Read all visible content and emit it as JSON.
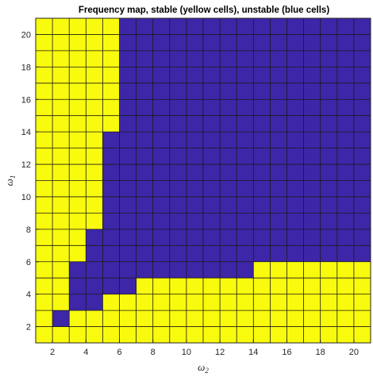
{
  "chart_data": {
    "type": "heatmap",
    "title": "Frequency map, stable (yellow cells), unstable (blue cells)",
    "xlabel": "ω2",
    "ylabel": "ω1",
    "x_symbol": "ω",
    "x_subscript": "2",
    "y_symbol": "ω",
    "y_subscript": "1",
    "x_range": [
      1,
      21
    ],
    "y_range": [
      1,
      21
    ],
    "x_ticks": [
      2,
      4,
      6,
      8,
      10,
      12,
      14,
      16,
      18,
      20
    ],
    "y_ticks": [
      2,
      4,
      6,
      8,
      10,
      12,
      14,
      16,
      18,
      20
    ],
    "x_tick_labels": [
      "2",
      "4",
      "6",
      "8",
      "10",
      "12",
      "14",
      "16",
      "18",
      "20"
    ],
    "y_tick_labels": [
      "2",
      "4",
      "6",
      "8",
      "10",
      "12",
      "14",
      "16",
      "18",
      "20"
    ],
    "x_cell_centers": [
      1.5,
      2.5,
      3.5,
      4.5,
      5.5,
      6.5,
      7.5,
      8.5,
      9.5,
      10.5,
      11.5,
      12.5,
      13.5,
      14.5,
      15.5,
      16.5,
      17.5,
      18.5,
      19.5,
      20.5
    ],
    "y_cell_centers": [
      1.5,
      2.5,
      3.5,
      4.5,
      5.5,
      6.5,
      7.5,
      8.5,
      9.5,
      10.5,
      11.5,
      12.5,
      13.5,
      14.5,
      15.5,
      16.5,
      17.5,
      18.5,
      19.5,
      20.5
    ],
    "categories": [
      "stable",
      "unstable"
    ],
    "colors": {
      "stable": "#F9FB0E",
      "unstable": "#3E26A8",
      "grid": "#1a1a1a"
    },
    "grid": true,
    "legend": "none",
    "stable_rule": "1 = stable (yellow), 0 = unstable (blue); rows listed from y bottom (1.5) to top (20.5), columns x from 1.5 to 20.5",
    "matrix": [
      [
        1,
        1,
        1,
        1,
        1,
        1,
        1,
        1,
        1,
        1,
        1,
        1,
        1,
        1,
        1,
        1,
        1,
        1,
        1,
        1
      ],
      [
        1,
        0,
        1,
        1,
        1,
        1,
        1,
        1,
        1,
        1,
        1,
        1,
        1,
        1,
        1,
        1,
        1,
        1,
        1,
        1
      ],
      [
        1,
        1,
        0,
        0,
        1,
        1,
        1,
        1,
        1,
        1,
        1,
        1,
        1,
        1,
        1,
        1,
        1,
        1,
        1,
        1
      ],
      [
        1,
        1,
        0,
        0,
        0,
        0,
        1,
        1,
        1,
        1,
        1,
        1,
        1,
        1,
        1,
        1,
        1,
        1,
        1,
        1
      ],
      [
        1,
        1,
        0,
        0,
        0,
        0,
        0,
        0,
        0,
        0,
        0,
        0,
        0,
        1,
        1,
        1,
        1,
        1,
        1,
        1
      ],
      [
        1,
        1,
        1,
        0,
        0,
        0,
        0,
        0,
        0,
        0,
        0,
        0,
        0,
        0,
        0,
        0,
        0,
        0,
        0,
        0
      ],
      [
        1,
        1,
        1,
        0,
        0,
        0,
        0,
        0,
        0,
        0,
        0,
        0,
        0,
        0,
        0,
        0,
        0,
        0,
        0,
        0
      ],
      [
        1,
        1,
        1,
        1,
        0,
        0,
        0,
        0,
        0,
        0,
        0,
        0,
        0,
        0,
        0,
        0,
        0,
        0,
        0,
        0
      ],
      [
        1,
        1,
        1,
        1,
        0,
        0,
        0,
        0,
        0,
        0,
        0,
        0,
        0,
        0,
        0,
        0,
        0,
        0,
        0,
        0
      ],
      [
        1,
        1,
        1,
        1,
        0,
        0,
        0,
        0,
        0,
        0,
        0,
        0,
        0,
        0,
        0,
        0,
        0,
        0,
        0,
        0
      ],
      [
        1,
        1,
        1,
        1,
        0,
        0,
        0,
        0,
        0,
        0,
        0,
        0,
        0,
        0,
        0,
        0,
        0,
        0,
        0,
        0
      ],
      [
        1,
        1,
        1,
        1,
        0,
        0,
        0,
        0,
        0,
        0,
        0,
        0,
        0,
        0,
        0,
        0,
        0,
        0,
        0,
        0
      ],
      [
        1,
        1,
        1,
        1,
        0,
        0,
        0,
        0,
        0,
        0,
        0,
        0,
        0,
        0,
        0,
        0,
        0,
        0,
        0,
        0
      ],
      [
        1,
        1,
        1,
        1,
        1,
        0,
        0,
        0,
        0,
        0,
        0,
        0,
        0,
        0,
        0,
        0,
        0,
        0,
        0,
        0
      ],
      [
        1,
        1,
        1,
        1,
        1,
        0,
        0,
        0,
        0,
        0,
        0,
        0,
        0,
        0,
        0,
        0,
        0,
        0,
        0,
        0
      ],
      [
        1,
        1,
        1,
        1,
        1,
        0,
        0,
        0,
        0,
        0,
        0,
        0,
        0,
        0,
        0,
        0,
        0,
        0,
        0,
        0
      ],
      [
        1,
        1,
        1,
        1,
        1,
        0,
        0,
        0,
        0,
        0,
        0,
        0,
        0,
        0,
        0,
        0,
        0,
        0,
        0,
        0
      ],
      [
        1,
        1,
        1,
        1,
        1,
        0,
        0,
        0,
        0,
        0,
        0,
        0,
        0,
        0,
        0,
        0,
        0,
        0,
        0,
        0
      ],
      [
        1,
        1,
        1,
        1,
        1,
        0,
        0,
        0,
        0,
        0,
        0,
        0,
        0,
        0,
        0,
        0,
        0,
        0,
        0,
        0
      ],
      [
        1,
        1,
        1,
        1,
        1,
        0,
        0,
        0,
        0,
        0,
        0,
        0,
        0,
        0,
        0,
        0,
        0,
        0,
        0,
        0
      ]
    ]
  }
}
